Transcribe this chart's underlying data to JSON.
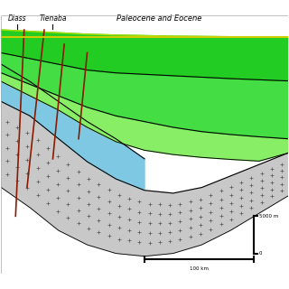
{
  "title": "",
  "labels": {
    "diass": "Diass",
    "tienaba": "Tienaba",
    "paleocene": "Paleocene and Eocene"
  },
  "scale_bar": {
    "km_label": "100 km",
    "m_label": "5000 m",
    "zero_label": "0"
  },
  "colors": {
    "background": "#ffffff",
    "granite": "#c8c8c8",
    "blue_layer": "#7ec8e3",
    "green_top": "#2db92d",
    "green_mid": "#5cd65c",
    "green_light": "#90ee90",
    "outline": "#000000",
    "fault": "#8B1a00",
    "yellow_line": "#d4c800",
    "border": "#cccccc"
  }
}
